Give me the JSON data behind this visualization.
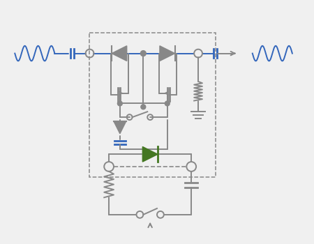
{
  "bg": "#f0f0f0",
  "gray": "#888888",
  "blue": "#3366bb",
  "green": "#447722",
  "lw": 1.4,
  "figsize": [
    4.5,
    3.5
  ],
  "dpi": 100
}
